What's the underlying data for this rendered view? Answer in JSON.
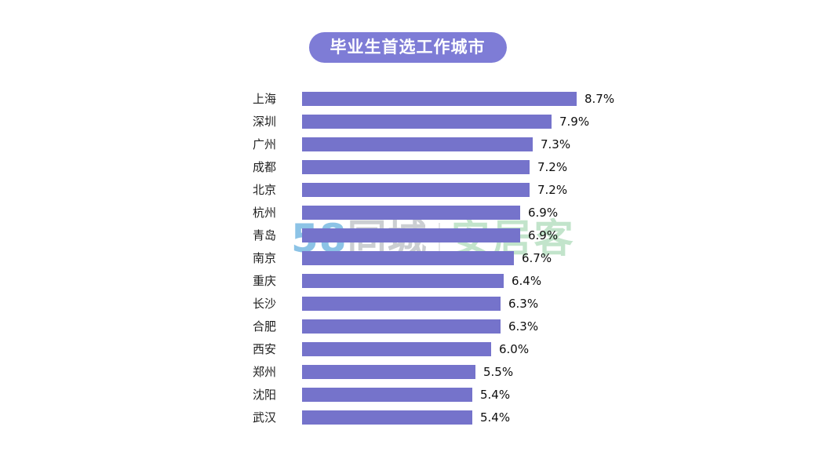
{
  "title_pill": {
    "label": "毕业生首选工作城市"
  },
  "chart_data": {
    "type": "bar",
    "orientation": "horizontal",
    "title": "毕业生首选工作城市",
    "categories": [
      "上海",
      "深圳",
      "广州",
      "成都",
      "北京",
      "杭州",
      "青岛",
      "南京",
      "重庆",
      "长沙",
      "合肥",
      "西安",
      "郑州",
      "沈阳",
      "武汉"
    ],
    "values": [
      8.7,
      7.9,
      7.3,
      7.2,
      7.2,
      6.9,
      6.9,
      6.7,
      6.4,
      6.3,
      6.3,
      6.0,
      5.5,
      5.4,
      5.4
    ],
    "labels": [
      "8.7%",
      "7.9%",
      "7.3%",
      "7.2%",
      "7.2%",
      "6.9%",
      "6.9%",
      "6.7%",
      "6.4%",
      "6.3%",
      "6.3%",
      "6.0%",
      "5.5%",
      "5.4%",
      "5.4%"
    ],
    "value_suffix": "%",
    "xlabel": "",
    "ylabel": "",
    "xlim": [
      0,
      8.7
    ],
    "grid": false,
    "legend": false,
    "sort": "descending",
    "bar_color": "#7573cb"
  },
  "watermark": {
    "brand_58": "58",
    "brand_tongcheng": "同城",
    "brand_anjuke": "安居客"
  },
  "colors": {
    "background": "#ffffff",
    "bar": "#7573cb",
    "title_pill_bg": "#7e7cd6",
    "title_pill_text": "#ffffff",
    "category_text": "#1f1f1f",
    "value_text": "#0d0d0d",
    "watermark_58": "#8cc3e6",
    "watermark_tongcheng": "#cbced2",
    "watermark_anjuke": "#c2e4cb"
  }
}
